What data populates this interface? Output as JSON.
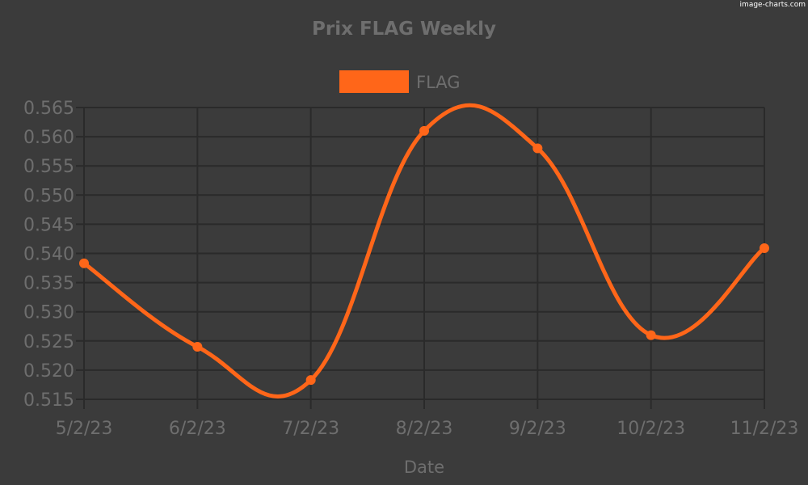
{
  "watermark": "image-charts.com",
  "colors": {
    "background": "#3b3b3b",
    "grid": "#2a2a2a",
    "text": "#6e6e6e",
    "series": "#ff6619"
  },
  "chart_data": {
    "type": "line",
    "title": "Prix FLAG Weekly",
    "xlabel": "Date",
    "ylabel": "",
    "legend_position": "top",
    "grid": true,
    "smooth": true,
    "categories": [
      "5/2/23",
      "6/2/23",
      "7/2/23",
      "8/2/23",
      "9/2/23",
      "10/2/23",
      "11/2/23"
    ],
    "ylim": [
      0.515,
      0.565
    ],
    "yticks": [
      "0.515",
      "0.520",
      "0.525",
      "0.530",
      "0.535",
      "0.540",
      "0.545",
      "0.550",
      "0.555",
      "0.560",
      "0.565"
    ],
    "series": [
      {
        "name": "FLAG",
        "color": "#ff6619",
        "values": [
          0.5383,
          0.524,
          0.5183,
          0.561,
          0.558,
          0.526,
          0.5409
        ]
      }
    ]
  }
}
